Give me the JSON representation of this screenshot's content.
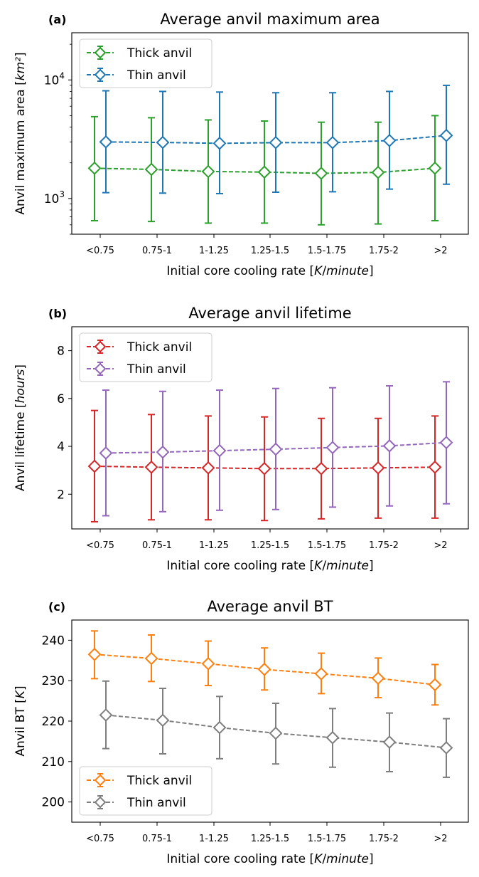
{
  "chart_data": [
    {
      "type": "line",
      "panel_label": "(a)",
      "title": "Average anvil maximum area",
      "ylabel": "Anvil maximum area [km²]",
      "xlabel": "Initial core cooling rate [K/minute]",
      "categories": [
        "<0.75",
        "0.75-1",
        "1-1.25",
        "1.25-1.5",
        "1.5-1.75",
        "1.75-2",
        ">2"
      ],
      "yscale": "log",
      "ylim": [
        500,
        25000
      ],
      "ytick_labels": [
        {
          "value": 1000,
          "base": "10",
          "exp": "3"
        },
        {
          "value": 10000,
          "base": "10",
          "exp": "4"
        }
      ],
      "legend": "upper left",
      "series": [
        {
          "name": "Thick anvil",
          "color": "#2ca02c",
          "values": [
            1800,
            1760,
            1690,
            1670,
            1630,
            1660,
            1800
          ],
          "lower": [
            650,
            640,
            620,
            620,
            600,
            610,
            650
          ],
          "upper": [
            4900,
            4800,
            4600,
            4500,
            4400,
            4400,
            5000
          ]
        },
        {
          "name": "Thin anvil",
          "color": "#1f77b4",
          "values": [
            3000,
            2970,
            2920,
            2960,
            2960,
            3080,
            3400
          ],
          "lower": [
            1120,
            1110,
            1100,
            1130,
            1140,
            1200,
            1320
          ],
          "upper": [
            8100,
            8000,
            7900,
            7800,
            7800,
            8000,
            9000
          ]
        }
      ]
    },
    {
      "type": "line",
      "panel_label": "(b)",
      "title": "Average anvil lifetime",
      "ylabel": "Anvil lifetime [hours]",
      "xlabel": "Initial core cooling rate [K/minute]",
      "categories": [
        "<0.75",
        "0.75-1",
        "1-1.25",
        "1.25-1.5",
        "1.5-1.75",
        "1.75-2",
        ">2"
      ],
      "yscale": "linear",
      "ylim": [
        0.55,
        9.0
      ],
      "yticks": [
        2,
        4,
        6,
        8
      ],
      "legend": "upper left",
      "series": [
        {
          "name": "Thick anvil",
          "color": "#d62728",
          "values": [
            3.17,
            3.13,
            3.1,
            3.07,
            3.07,
            3.1,
            3.13
          ],
          "lower": [
            0.85,
            0.93,
            0.93,
            0.9,
            0.97,
            1.0,
            1.0
          ],
          "upper": [
            5.5,
            5.33,
            5.27,
            5.23,
            5.17,
            5.17,
            5.27
          ]
        },
        {
          "name": "Thin anvil",
          "color": "#9467bd",
          "values": [
            3.72,
            3.76,
            3.82,
            3.88,
            3.95,
            4.02,
            4.16
          ],
          "lower": [
            1.1,
            1.27,
            1.33,
            1.36,
            1.46,
            1.51,
            1.6
          ],
          "upper": [
            6.35,
            6.3,
            6.35,
            6.42,
            6.45,
            6.53,
            6.7
          ]
        }
      ]
    },
    {
      "type": "line",
      "panel_label": "(c)",
      "title": "Average anvil BT",
      "ylabel": "Anvil BT [K]",
      "xlabel": "Initial core cooling rate [K/minute]",
      "categories": [
        "<0.75",
        "0.75-1",
        "1-1.25",
        "1.25-1.5",
        "1.5-1.75",
        "1.75-2",
        ">2"
      ],
      "yscale": "linear",
      "ylim": [
        195,
        245
      ],
      "yticks": [
        200,
        210,
        220,
        230,
        240
      ],
      "legend": "lower left",
      "series": [
        {
          "name": "Thick anvil",
          "color": "#ff7f0e",
          "values": [
            236.5,
            235.5,
            234.2,
            232.8,
            231.7,
            230.6,
            229.0
          ],
          "lower": [
            230.5,
            229.8,
            228.8,
            227.7,
            226.8,
            225.8,
            224.0
          ],
          "upper": [
            242.3,
            241.3,
            239.8,
            238.1,
            236.8,
            235.6,
            234.0
          ]
        },
        {
          "name": "Thin anvil",
          "color": "#7f7f7f",
          "values": [
            221.5,
            220.2,
            218.4,
            217.0,
            215.9,
            214.8,
            213.4
          ],
          "lower": [
            213.2,
            211.9,
            210.7,
            209.4,
            208.6,
            207.5,
            206.1
          ],
          "upper": [
            229.9,
            228.1,
            226.1,
            224.4,
            223.1,
            222.0,
            220.6
          ]
        }
      ]
    }
  ]
}
